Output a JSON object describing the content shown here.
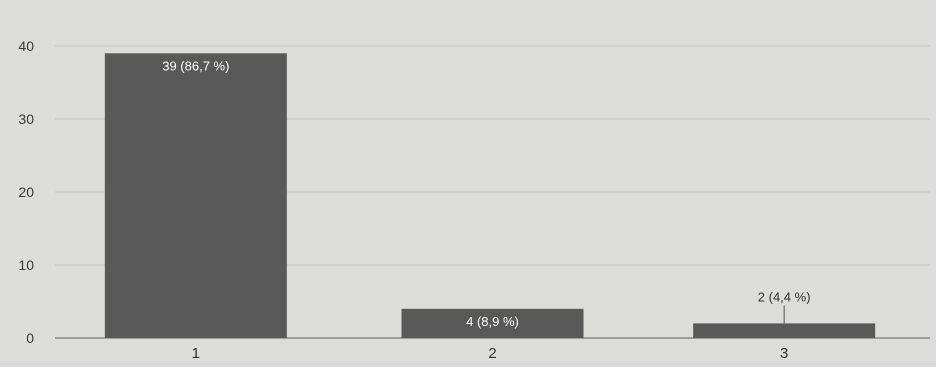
{
  "chart_data": {
    "type": "bar",
    "categories": [
      "1",
      "2",
      "3"
    ],
    "values": [
      39,
      4,
      2
    ],
    "data_labels": [
      "39 (86,7 %)",
      "4 (8,9 %)",
      "2 (4,4 %)"
    ],
    "y_ticks": [
      "0",
      "10",
      "20",
      "30",
      "40"
    ],
    "ylim": [
      0,
      40
    ],
    "grid": true,
    "bar_color": "#595959",
    "label_color_inside": "#ffffff",
    "label_color_outside": "#333333"
  }
}
